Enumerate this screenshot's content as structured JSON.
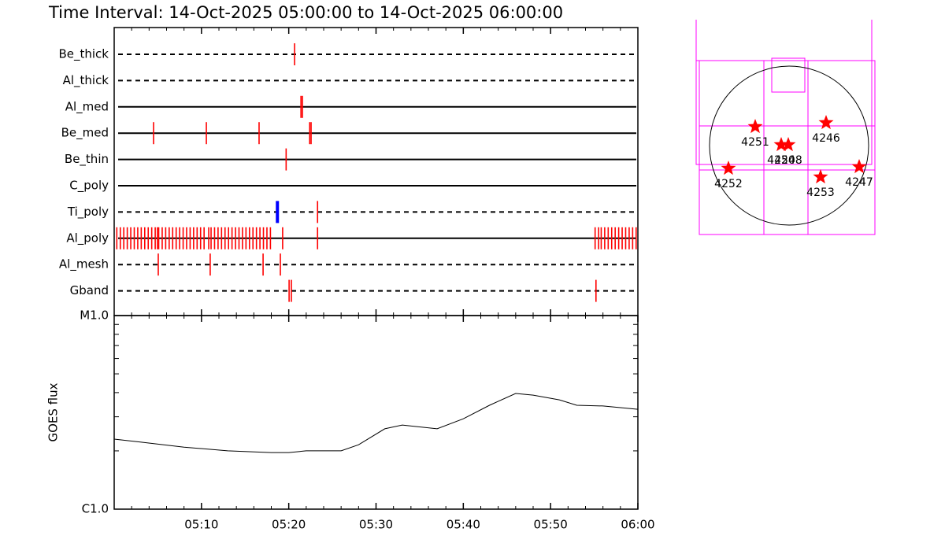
{
  "chart_data": [
    {
      "type": "timeline",
      "title": "Time Interval: 14-Oct-2025 05:00:00 to 14-Oct-2025 06:00:00",
      "event_color": "#ff0000",
      "xlim": [
        0,
        60
      ],
      "xticks": [
        10,
        20,
        30,
        40,
        50
      ],
      "xminorticks": [
        2,
        4,
        6,
        8,
        12,
        14,
        16,
        18,
        22,
        24,
        26,
        28,
        32,
        34,
        36,
        38,
        42,
        44,
        46,
        48,
        52,
        54,
        56,
        58
      ],
      "rows": [
        {
          "name": "Be_thick",
          "line": "dashed",
          "events": [
            20.67
          ]
        },
        {
          "name": "Al_thick",
          "line": "dashed",
          "events": []
        },
        {
          "name": "Al_med",
          "line": "solid",
          "events": [
            21.4,
            21.57
          ]
        },
        {
          "name": "Be_med",
          "line": "solid",
          "events": [
            4.51,
            10.56,
            16.6,
            22.4,
            22.56
          ]
        },
        {
          "name": "Be_thin",
          "line": "solid",
          "events": [
            19.7
          ]
        },
        {
          "name": "C_poly",
          "line": "solid",
          "events": []
        },
        {
          "name": "Ti_poly",
          "line": "dashed",
          "events": [
            18.7,
            23.3
          ],
          "event_colors": [
            "#0000ff",
            "#ff0000"
          ]
        },
        {
          "name": "Al_poly",
          "line": "solid",
          "events": [
            0.3,
            0.7,
            1.1,
            1.5,
            1.9,
            2.3,
            2.7,
            3.1,
            3.5,
            3.9,
            4.3,
            4.7,
            4.96,
            5.1,
            5.5,
            5.9,
            6.3,
            6.7,
            7.1,
            7.5,
            7.9,
            8.3,
            8.7,
            9.1,
            9.5,
            9.9,
            10.3,
            10.83,
            11.1,
            11.5,
            11.9,
            12.3,
            12.7,
            13.1,
            13.5,
            13.9,
            14.3,
            14.7,
            15.1,
            15.5,
            15.9,
            16.3,
            16.7,
            17.1,
            17.5,
            17.9,
            19.3,
            23.3,
            55.1,
            55.5,
            55.8,
            56.2,
            56.6,
            57.0,
            57.4,
            57.8,
            58.2,
            58.6,
            59.0,
            59.4,
            59.8
          ]
        },
        {
          "name": "Al_mesh",
          "line": "dashed",
          "events": [
            5.05,
            11.0,
            17.06,
            19.04
          ]
        },
        {
          "name": "Gband",
          "line": "dashed",
          "events": [
            20.04,
            20.3,
            55.2
          ]
        }
      ]
    },
    {
      "type": "line",
      "ylabel": "GOES flux",
      "color": "#000000",
      "log_y": true,
      "x": [
        0,
        3,
        8,
        13,
        18,
        20,
        22,
        26,
        28,
        31,
        33,
        37,
        40,
        43,
        46,
        48,
        51,
        53,
        56,
        60
      ],
      "values": [
        2.3e-06,
        2.22e-06,
        2.09e-06,
        2e-06,
        1.96e-06,
        1.96e-06,
        2e-06,
        2e-06,
        2.15e-06,
        2.6e-06,
        2.72e-06,
        2.6e-06,
        2.93e-06,
        3.44e-06,
        3.96e-06,
        3.88e-06,
        3.67e-06,
        3.44e-06,
        3.41e-06,
        3.28e-06
      ],
      "xlim": [
        0,
        60
      ],
      "xticks": [
        {
          "value": 10,
          "label": "05:10"
        },
        {
          "value": 20,
          "label": "05:20"
        },
        {
          "value": 30,
          "label": "05:30"
        },
        {
          "value": 40,
          "label": "05:40"
        },
        {
          "value": 50,
          "label": "05:50"
        },
        {
          "value": 60,
          "label": "06:00"
        }
      ],
      "xminorticks": [
        2,
        4,
        6,
        8,
        12,
        14,
        16,
        18,
        22,
        24,
        26,
        28,
        32,
        34,
        36,
        38,
        42,
        44,
        46,
        48,
        52,
        54,
        56,
        58
      ],
      "ylim": [
        1e-06,
        1e-05
      ],
      "yticks": [
        {
          "value": 1e-06,
          "label": "C1.0"
        },
        {
          "value": 1e-05,
          "label": "M1.0"
        }
      ],
      "yminorticks": [
        2e-06,
        3e-06,
        4e-06,
        5e-06,
        6e-06,
        7e-06,
        8e-06,
        9e-06
      ]
    },
    {
      "type": "map",
      "color": "#ff0000",
      "labels": [
        "4251",
        "4246",
        "4250",
        "4248",
        "4252",
        "4253",
        "4247"
      ]
    }
  ]
}
